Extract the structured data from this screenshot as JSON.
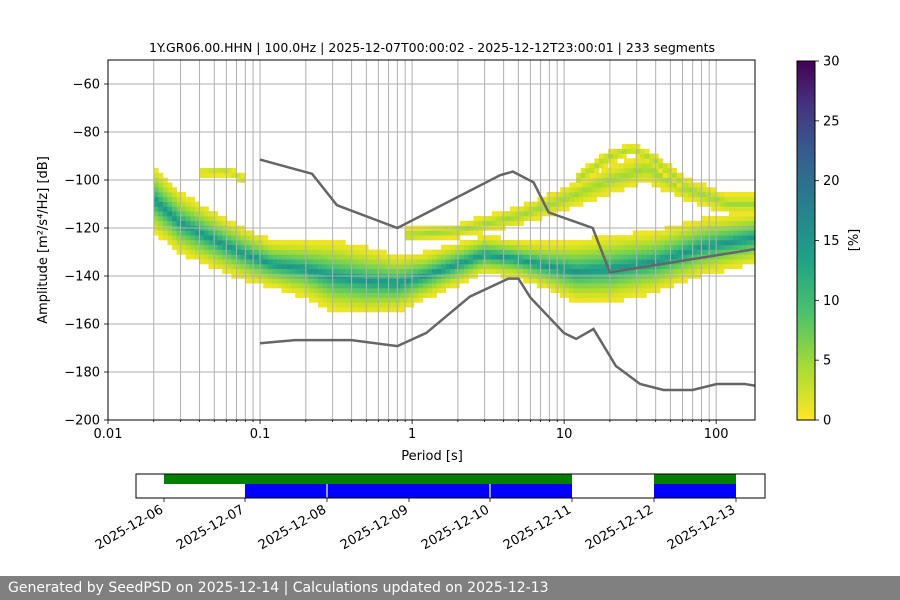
{
  "footer": {
    "text": "Generated by SeedPSD on 2025-12-14 | Calculations updated on 2025-12-13"
  },
  "colors": {
    "nlnm": "#666666",
    "grid": "#b0b0b0",
    "coverage_data": "#0000ff",
    "coverage_gaps": "#008000",
    "footer_bg": "#808080"
  },
  "chart_data": [
    {
      "type": "heatmap",
      "title": "1Y.GR06.00.HHN | 100.0Hz | 2025-12-07T00:00:02 - 2025-12-12T23:00:01 | 233 segments",
      "xlabel": "Period [s]",
      "ylabel": "Amplitude [m²/s⁴/Hz] [dB]",
      "x_scale": "log",
      "xlim": [
        0.01,
        180
      ],
      "ylim": [
        -200,
        -50
      ],
      "x_ticks": [
        0.01,
        0.1,
        1,
        10,
        100
      ],
      "x_tick_labels": [
        "0.01",
        "0.1",
        "1",
        "10",
        "100"
      ],
      "y_ticks": [
        -200,
        -180,
        -160,
        -140,
        -120,
        -100,
        -80,
        -60
      ],
      "y_tick_labels": [
        "−200",
        "−180",
        "−160",
        "−140",
        "−120",
        "−100",
        "−80",
        "−60"
      ],
      "colorbar": {
        "label": "[%]",
        "range": [
          0,
          30
        ],
        "ticks": [
          0,
          5,
          10,
          15,
          20,
          25,
          30
        ],
        "tick_labels": [
          "0",
          "5",
          "10",
          "15",
          "20",
          "25",
          "30"
        ],
        "colormap": "viridis_r"
      },
      "psd_main_band": [
        {
          "period": 0.02,
          "center": -108,
          "halfwidth": 14
        },
        {
          "period": 0.03,
          "center": -118,
          "halfwidth": 13
        },
        {
          "period": 0.05,
          "center": -125,
          "halfwidth": 12
        },
        {
          "period": 0.08,
          "center": -131,
          "halfwidth": 11
        },
        {
          "period": 0.12,
          "center": -135,
          "halfwidth": 10
        },
        {
          "period": 0.2,
          "center": -137,
          "halfwidth": 12
        },
        {
          "period": 0.3,
          "center": -140,
          "halfwidth": 15
        },
        {
          "period": 0.5,
          "center": -142,
          "halfwidth": 14
        },
        {
          "period": 0.8,
          "center": -143,
          "halfwidth": 12
        },
        {
          "period": 1.2,
          "center": -140,
          "halfwidth": 10
        },
        {
          "period": 2,
          "center": -135,
          "halfwidth": 9
        },
        {
          "period": 3,
          "center": -131,
          "halfwidth": 8
        },
        {
          "period": 5,
          "center": -133,
          "halfwidth": 8
        },
        {
          "period": 8,
          "center": -136,
          "halfwidth": 10
        },
        {
          "period": 12,
          "center": -138,
          "halfwidth": 13
        },
        {
          "period": 20,
          "center": -137,
          "halfwidth": 14
        },
        {
          "period": 40,
          "center": -134,
          "halfwidth": 13
        },
        {
          "period": 80,
          "center": -128,
          "halfwidth": 12
        },
        {
          "period": 180,
          "center": -124,
          "halfwidth": 11
        }
      ],
      "psd_secondary_band": [
        {
          "period": 0.9,
          "center": -123,
          "halfwidth": 3
        },
        {
          "period": 2,
          "center": -121,
          "halfwidth": 3
        },
        {
          "period": 5,
          "center": -115,
          "halfwidth": 4
        },
        {
          "period": 10,
          "center": -108,
          "halfwidth": 5
        },
        {
          "period": 20,
          "center": -100,
          "halfwidth": 6
        },
        {
          "period": 35,
          "center": -95,
          "halfwidth": 6
        },
        {
          "period": 60,
          "center": -103,
          "halfwidth": 5
        },
        {
          "period": 120,
          "center": -110,
          "halfwidth": 4
        }
      ],
      "psd_high_arc": [
        {
          "period": 12,
          "center": -100,
          "halfwidth": 3
        },
        {
          "period": 20,
          "center": -90,
          "halfwidth": 3
        },
        {
          "period": 28,
          "center": -87,
          "halfwidth": 2
        },
        {
          "period": 40,
          "center": -92,
          "halfwidth": 3
        },
        {
          "period": 60,
          "center": -101,
          "halfwidth": 3
        }
      ],
      "psd_low_tail": [
        {
          "period": 0.04,
          "center": -97,
          "halfwidth": 2
        },
        {
          "period": 0.06,
          "center": -96,
          "halfwidth": 2
        },
        {
          "period": 0.08,
          "center": -100,
          "halfwidth": 2
        }
      ],
      "nhnm": [
        {
          "period": 0.1,
          "db": -91.5
        },
        {
          "period": 0.22,
          "db": -97.4
        },
        {
          "period": 0.32,
          "db": -110.5
        },
        {
          "period": 0.8,
          "db": -120
        },
        {
          "period": 3.8,
          "db": -98
        },
        {
          "period": 4.6,
          "db": -96.5
        },
        {
          "period": 6.3,
          "db": -101
        },
        {
          "period": 7.9,
          "db": -113.5
        },
        {
          "period": 15.4,
          "db": -120
        },
        {
          "period": 20,
          "db": -138.5
        },
        {
          "period": 180,
          "db": -128.8
        }
      ],
      "nlnm": [
        {
          "period": 0.1,
          "db": -168
        },
        {
          "period": 0.17,
          "db": -166.7
        },
        {
          "period": 0.4,
          "db": -166.7
        },
        {
          "period": 0.8,
          "db": -169.2
        },
        {
          "period": 1.24,
          "db": -163.7
        },
        {
          "period": 2.4,
          "db": -148.6
        },
        {
          "period": 4.3,
          "db": -141.1
        },
        {
          "period": 5,
          "db": -141.1
        },
        {
          "period": 6,
          "db": -149
        },
        {
          "period": 10,
          "db": -163.8
        },
        {
          "period": 12,
          "db": -166.2
        },
        {
          "period": 15.6,
          "db": -162.1
        },
        {
          "period": 21.9,
          "db": -177.5
        },
        {
          "period": 31.6,
          "db": -185
        },
        {
          "period": 45,
          "db": -187.5
        },
        {
          "period": 70,
          "db": -187.5
        },
        {
          "period": 101,
          "db": -185
        },
        {
          "period": 154,
          "db": -185
        },
        {
          "period": 180,
          "db": -185.7
        }
      ]
    },
    {
      "type": "bar",
      "name": "data coverage timeline",
      "x_tick_labels": [
        "2025-12-06",
        "2025-12-07",
        "2025-12-08",
        "2025-12-09",
        "2025-12-10",
        "2025-12-11",
        "2025-12-12",
        "2025-12-13"
      ],
      "series": [
        {
          "name": "gaps",
          "color": "#008000",
          "spans": [
            [
              "2025-12-06",
              "2025-12-11"
            ],
            [
              "2025-12-12",
              "2025-12-13"
            ]
          ]
        },
        {
          "name": "data",
          "color": "#0000ff",
          "spans": [
            [
              "2025-12-07",
              "2025-12-11"
            ],
            [
              "2025-12-12",
              "2025-12-13"
            ]
          ]
        }
      ]
    }
  ]
}
